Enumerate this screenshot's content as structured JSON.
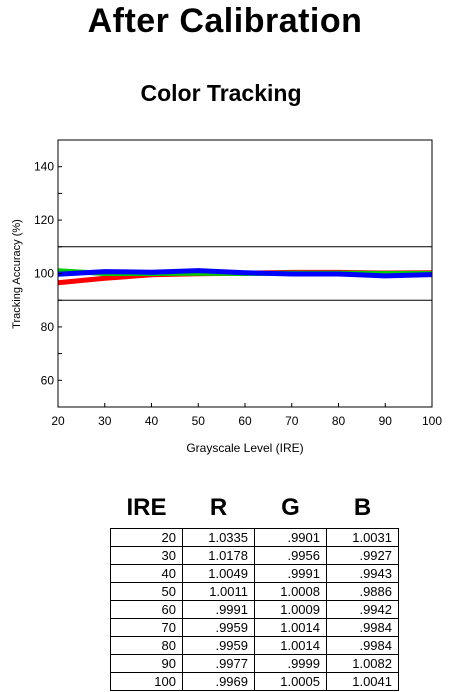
{
  "page_title": "After Calibration",
  "chart_data": {
    "type": "line",
    "title": "Color Tracking",
    "xlabel": "Grayscale Level (IRE)",
    "ylabel": "Tracking Accuracy (%)",
    "xlim": [
      20,
      100
    ],
    "ylim": [
      50,
      150
    ],
    "x_ticks": [
      20,
      30,
      40,
      50,
      60,
      70,
      80,
      90,
      100
    ],
    "y_ticks": [
      60,
      80,
      100,
      120,
      140
    ],
    "x": [
      20,
      30,
      40,
      50,
      60,
      70,
      80,
      90,
      100
    ],
    "reference_lines": [
      90,
      110
    ],
    "grid": false,
    "series": [
      {
        "color": "#ff0000",
        "values": [
          96.5,
          98.2,
          99.5,
          99.9,
          100.1,
          100.4,
          100.4,
          100.2,
          100.3
        ]
      },
      {
        "color": "#00cc00",
        "values": [
          101.0,
          100.0,
          100.0,
          100.1,
          100.0,
          100.1,
          100.1,
          100.0,
          100.0
        ]
      },
      {
        "color": "#0000ff",
        "values": [
          99.7,
          100.7,
          100.5,
          101.1,
          100.3,
          99.8,
          99.8,
          99.1,
          99.6
        ]
      }
    ]
  },
  "table": {
    "headers": [
      "IRE",
      "R",
      "G",
      "B"
    ],
    "rows": [
      [
        "20",
        "1.0335",
        ".9901",
        "1.0031"
      ],
      [
        "30",
        "1.0178",
        ".9956",
        ".9927"
      ],
      [
        "40",
        "1.0049",
        ".9991",
        ".9943"
      ],
      [
        "50",
        "1.0011",
        "1.0008",
        ".9886"
      ],
      [
        "60",
        ".9991",
        "1.0009",
        ".9942"
      ],
      [
        "70",
        ".9959",
        "1.0014",
        ".9984"
      ],
      [
        "80",
        ".9959",
        "1.0014",
        ".9984"
      ],
      [
        "90",
        ".9977",
        ".9999",
        "1.0082"
      ],
      [
        "100",
        ".9969",
        "1.0005",
        "1.0041"
      ]
    ]
  }
}
